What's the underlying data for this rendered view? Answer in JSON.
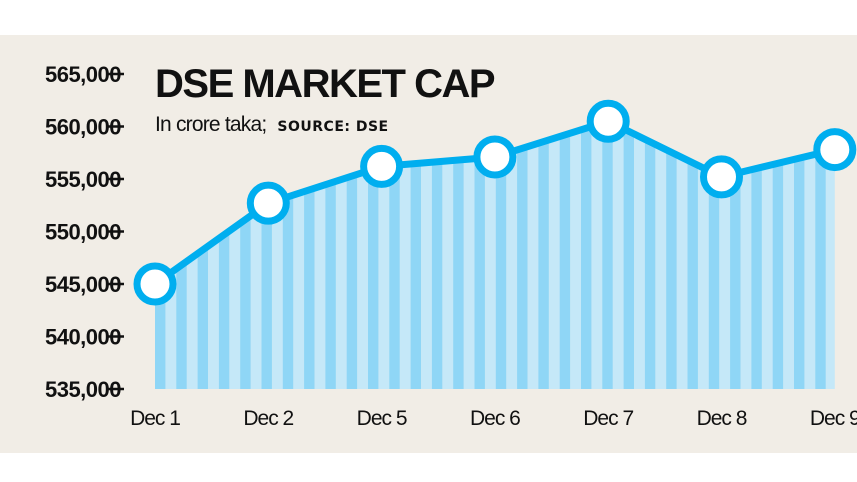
{
  "chart_data": {
    "type": "area",
    "title": "DSE MARKET CAP",
    "subtitle": "In crore taka;",
    "source": "SOURCE: DSE",
    "categories": [
      "Dec 1",
      "Dec 2",
      "Dec 5",
      "Dec 6",
      "Dec 7",
      "Dec 8",
      "Dec 9"
    ],
    "values": [
      545000,
      552700,
      556200,
      557100,
      560500,
      555200,
      557800
    ],
    "xlabel": "",
    "ylabel": "",
    "ylim": [
      535000,
      565000
    ],
    "yticks": [
      565000,
      560000,
      555000,
      550000,
      545000,
      540000,
      535000
    ],
    "ytick_labels": [
      "565,000",
      "560,000",
      "555,000",
      "550,000",
      "545,000",
      "540,000",
      "535,000"
    ],
    "grid": false,
    "legend": null,
    "colors": {
      "line": "#00aeef",
      "marker_fill": "#ffffff",
      "stripe_dark": "#8fd6f6",
      "stripe_light": "#c5e8f8",
      "background": "#f1ede6"
    }
  }
}
